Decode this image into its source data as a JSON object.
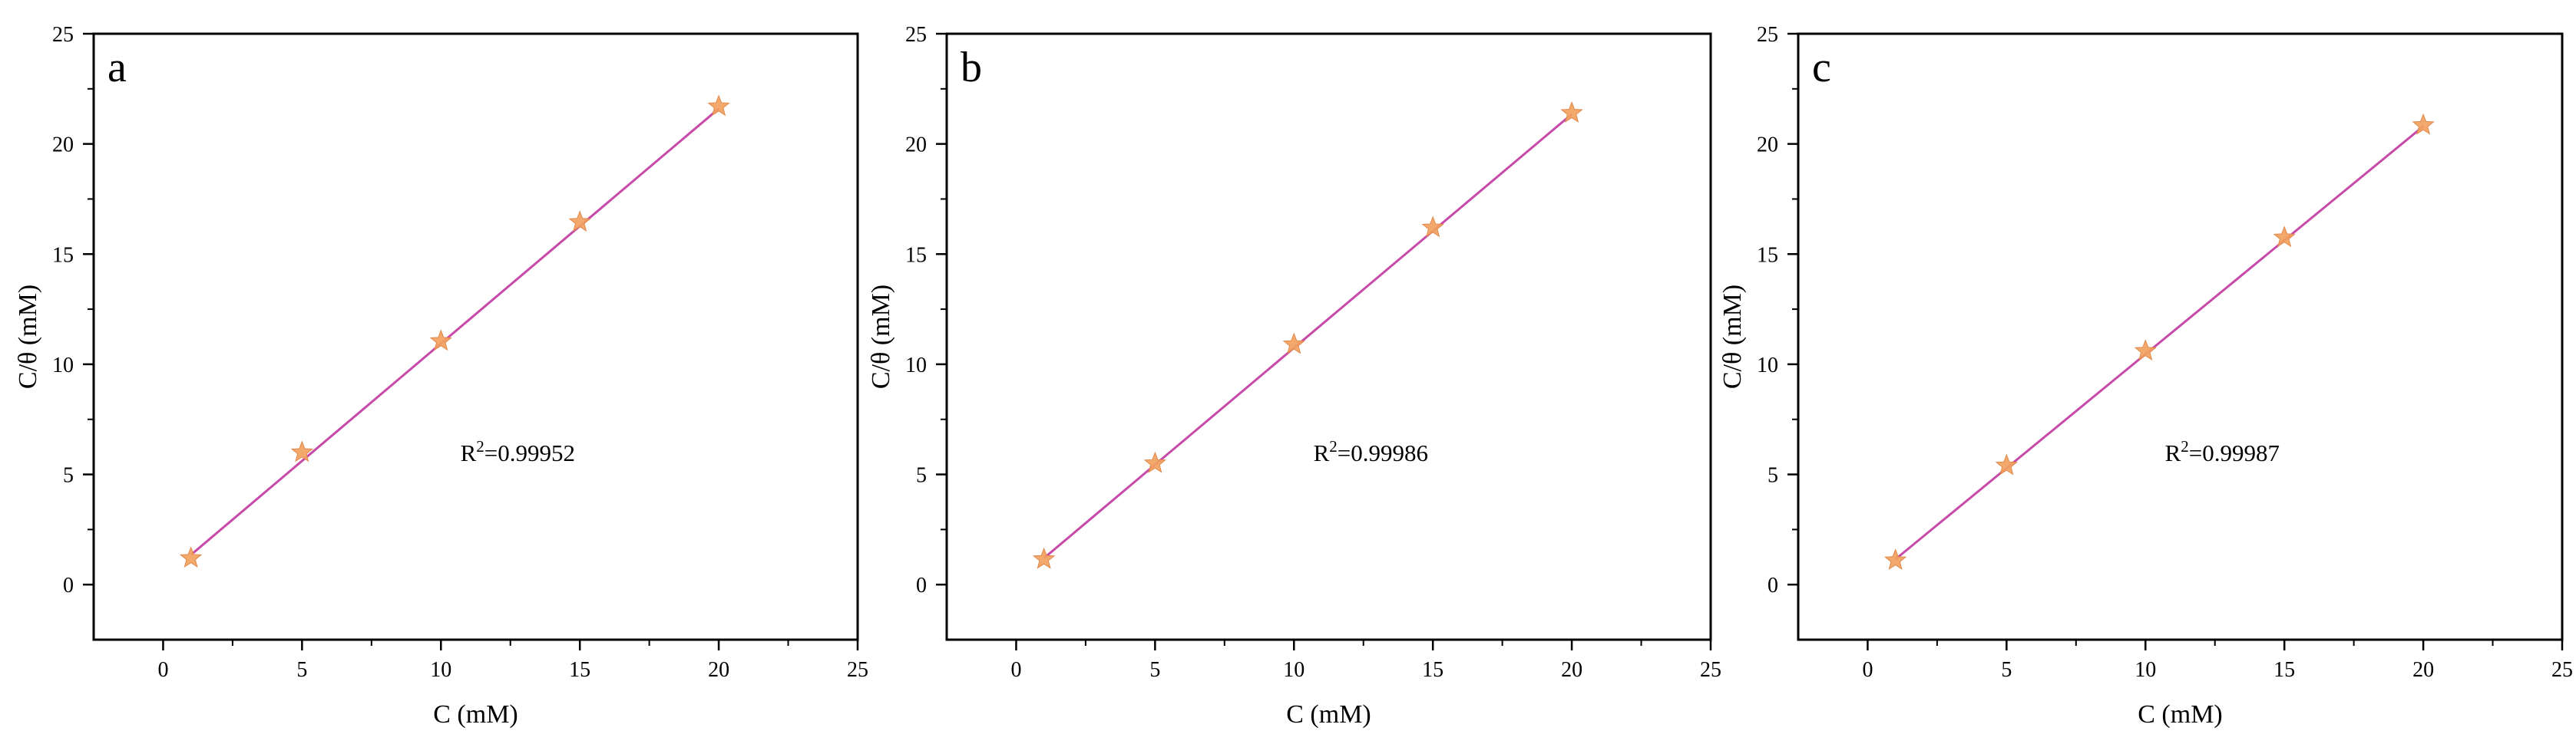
{
  "chart_data": [
    {
      "type": "scatter",
      "panel_label": "a",
      "xlabel": "C (mM)",
      "ylabel": "C/θ (mM)",
      "xlim": [
        -2.5,
        25
      ],
      "ylim": [
        -2.5,
        25
      ],
      "xticks": [
        0,
        5,
        10,
        15,
        20,
        25
      ],
      "yticks": [
        0,
        5,
        10,
        15,
        20,
        25
      ],
      "points": [
        {
          "x": 1,
          "y": 1.2
        },
        {
          "x": 5,
          "y": 6.0
        },
        {
          "x": 10,
          "y": 11.05
        },
        {
          "x": 15,
          "y": 16.45
        },
        {
          "x": 20,
          "y": 21.7
        }
      ],
      "fit_line": {
        "x": [
          1,
          20
        ],
        "y": [
          1.35,
          21.6
        ]
      },
      "annotation": {
        "base": "R",
        "superscript": "2",
        "text": "=0.99952"
      },
      "marker_color": "#f2a15f",
      "line_color": "#c74aa8"
    },
    {
      "type": "scatter",
      "panel_label": "b",
      "xlabel": "C (mM)",
      "ylabel": "C/θ (mM)",
      "xlim": [
        -2.5,
        25
      ],
      "ylim": [
        -2.5,
        25
      ],
      "xticks": [
        0,
        5,
        10,
        15,
        20,
        25
      ],
      "yticks": [
        0,
        5,
        10,
        15,
        20,
        25
      ],
      "points": [
        {
          "x": 1,
          "y": 1.15
        },
        {
          "x": 5,
          "y": 5.5
        },
        {
          "x": 10,
          "y": 10.9
        },
        {
          "x": 15,
          "y": 16.2
        },
        {
          "x": 20,
          "y": 21.4
        }
      ],
      "fit_line": {
        "x": [
          1,
          20
        ],
        "y": [
          1.2,
          21.35
        ]
      },
      "annotation": {
        "base": "R",
        "superscript": "2",
        "text": "=0.99986"
      },
      "marker_color": "#f2a15f",
      "line_color": "#c74aa8"
    },
    {
      "type": "scatter",
      "panel_label": "c",
      "xlabel": "C (mM)",
      "ylabel": "C/θ (mM)",
      "xlim": [
        -2.5,
        25
      ],
      "ylim": [
        -2.5,
        25
      ],
      "xticks": [
        0,
        5,
        10,
        15,
        20,
        25
      ],
      "yticks": [
        0,
        5,
        10,
        15,
        20,
        25
      ],
      "points": [
        {
          "x": 1,
          "y": 1.1
        },
        {
          "x": 5,
          "y": 5.4
        },
        {
          "x": 10,
          "y": 10.6
        },
        {
          "x": 15,
          "y": 15.75
        },
        {
          "x": 20,
          "y": 20.85
        }
      ],
      "fit_line": {
        "x": [
          1,
          20
        ],
        "y": [
          1.15,
          20.8
        ]
      },
      "annotation": {
        "base": "R",
        "superscript": "2",
        "text": "=0.99987"
      },
      "marker_color": "#f2a15f",
      "line_color": "#c74aa8"
    }
  ]
}
